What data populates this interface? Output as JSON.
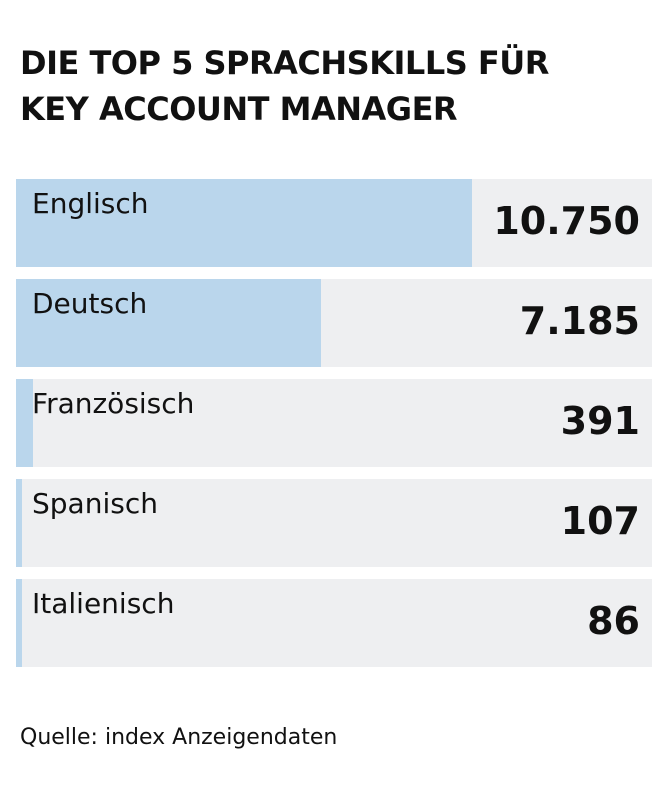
{
  "title_line1": "DIE TOP 5 SPRACHSKILLS FÜR",
  "title_line2": "KEY ACCOUNT MANAGER",
  "source": "Quelle: index Anzeigendaten",
  "colors": {
    "bar": "#bad6ec",
    "track": "#eeeff1",
    "text": "#111111"
  },
  "chart_data": {
    "type": "bar",
    "orientation": "horizontal",
    "title": "DIE TOP 5 SPRACHSKILLS FÜR KEY ACCOUNT MANAGER",
    "categories": [
      "Englisch",
      "Deutsch",
      "Französisch",
      "Spanisch",
      "Italienisch"
    ],
    "values": [
      10750,
      7185,
      391,
      107,
      86
    ],
    "value_labels": [
      "10.750",
      "7.185",
      "391",
      "107",
      "86"
    ],
    "xlim": [
      0,
      15000
    ],
    "grid": false,
    "legend": "none"
  }
}
